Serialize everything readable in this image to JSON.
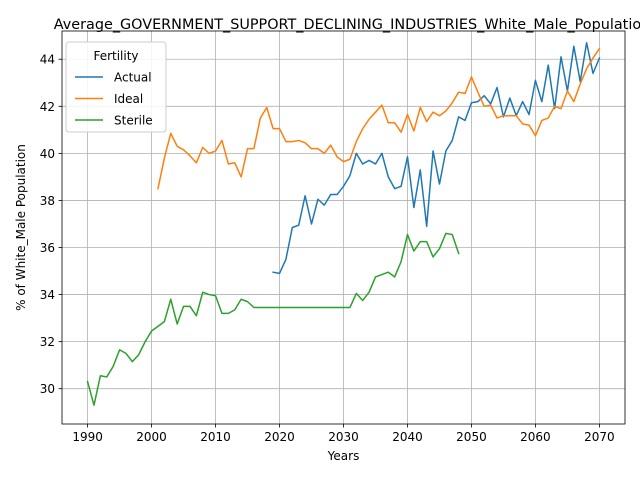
{
  "chart_data": {
    "type": "line",
    "title": "Average_GOVERNMENT_SUPPORT_DECLINING_INDUSTRIES_White_Male_Population",
    "xlabel": "Years",
    "ylabel": "% of White_Male Population",
    "xlim": [
      1986,
      2074
    ],
    "ylim": [
      28.5,
      45.2
    ],
    "xticks": [
      1990,
      2000,
      2010,
      2020,
      2030,
      2040,
      2050,
      2060,
      2070
    ],
    "yticks": [
      30,
      32,
      34,
      36,
      38,
      40,
      42,
      44
    ],
    "grid": true,
    "legend": {
      "title": "Fertility",
      "position": "upper-left"
    },
    "series": [
      {
        "name": "Actual",
        "color": "#1f77b4",
        "x": [
          2019,
          2020,
          2021,
          2022,
          2023,
          2024,
          2025,
          2026,
          2027,
          2028,
          2029,
          2030,
          2031,
          2032,
          2033,
          2034,
          2035,
          2036,
          2037,
          2038,
          2039,
          2040,
          2041,
          2042,
          2043,
          2044,
          2045,
          2046,
          2047,
          2048,
          2049,
          2050,
          2051,
          2052,
          2053,
          2054,
          2055,
          2056,
          2057,
          2058,
          2059,
          2060,
          2061,
          2062,
          2063,
          2064,
          2065,
          2066,
          2067,
          2068,
          2069,
          2070
        ],
        "y": [
          34.95,
          34.9,
          35.5,
          36.85,
          36.95,
          38.2,
          37.0,
          38.05,
          37.8,
          38.25,
          38.25,
          38.6,
          39.05,
          40.0,
          39.55,
          39.7,
          39.55,
          40.0,
          39.0,
          38.5,
          38.6,
          39.85,
          37.7,
          39.3,
          36.9,
          40.1,
          38.7,
          40.1,
          40.55,
          41.55,
          41.4,
          42.15,
          42.2,
          42.45,
          42.1,
          42.8,
          41.55,
          42.35,
          41.6,
          42.2,
          41.65,
          43.1,
          42.2,
          43.75,
          41.9,
          44.1,
          42.65,
          44.55,
          43.05,
          44.7,
          43.4,
          44.05
        ]
      },
      {
        "name": "Ideal",
        "color": "#ff7f0e",
        "x": [
          2001,
          2002,
          2003,
          2004,
          2005,
          2006,
          2007,
          2008,
          2009,
          2010,
          2011,
          2012,
          2013,
          2014,
          2015,
          2016,
          2017,
          2018,
          2019,
          2020,
          2021,
          2022,
          2023,
          2024,
          2025,
          2026,
          2027,
          2028,
          2029,
          2030,
          2031,
          2032,
          2033,
          2034,
          2035,
          2036,
          2037,
          2038,
          2039,
          2040,
          2041,
          2042,
          2043,
          2044,
          2045,
          2046,
          2047,
          2048,
          2049,
          2050,
          2051,
          2052,
          2053,
          2054,
          2055,
          2056,
          2057,
          2058,
          2059,
          2060,
          2061,
          2062,
          2063,
          2064,
          2065,
          2066,
          2067,
          2068,
          2069,
          2070
        ],
        "y": [
          38.5,
          39.8,
          40.85,
          40.3,
          40.15,
          39.9,
          39.6,
          40.25,
          40.0,
          40.1,
          40.55,
          39.55,
          39.6,
          39.0,
          40.2,
          40.2,
          41.5,
          41.95,
          41.05,
          41.05,
          40.5,
          40.5,
          40.55,
          40.45,
          40.2,
          40.2,
          40.0,
          40.35,
          39.85,
          39.65,
          39.75,
          40.5,
          41.05,
          41.45,
          41.75,
          42.05,
          41.3,
          41.3,
          40.9,
          41.65,
          40.95,
          41.95,
          41.35,
          41.75,
          41.6,
          41.8,
          42.15,
          42.6,
          42.55,
          43.25,
          42.6,
          42.0,
          42.05,
          41.5,
          41.6,
          41.6,
          41.6,
          41.25,
          41.2,
          40.75,
          41.4,
          41.5,
          42.0,
          41.9,
          42.65,
          42.2,
          42.95,
          43.6,
          44.05,
          44.45
        ]
      },
      {
        "name": "Sterile",
        "color": "#2ca02c",
        "x": [
          1990,
          1991,
          1992,
          1993,
          1994,
          1995,
          1996,
          1997,
          1998,
          1999,
          2000,
          2001,
          2002,
          2003,
          2004,
          2005,
          2006,
          2007,
          2008,
          2009,
          2010,
          2011,
          2012,
          2013,
          2014,
          2015,
          2016,
          2017,
          2018,
          2019,
          2020,
          2021,
          2022,
          2023,
          2024,
          2025,
          2026,
          2027,
          2028,
          2029,
          2030,
          2031,
          2032,
          2033,
          2034,
          2035,
          2036,
          2037,
          2038,
          2039,
          2040,
          2041,
          2042,
          2043,
          2044,
          2045,
          2046,
          2047,
          2048
        ],
        "y": [
          30.3,
          29.3,
          30.55,
          30.5,
          30.95,
          31.65,
          31.5,
          31.15,
          31.45,
          32.0,
          32.45,
          32.65,
          32.85,
          33.8,
          32.75,
          33.5,
          33.5,
          33.1,
          34.1,
          34.0,
          33.95,
          33.2,
          33.2,
          33.35,
          33.8,
          33.7,
          33.45,
          33.45,
          33.45,
          33.45,
          33.45,
          33.45,
          33.45,
          33.45,
          33.45,
          33.45,
          33.45,
          33.45,
          33.45,
          33.45,
          33.45,
          33.45,
          34.05,
          33.75,
          34.1,
          34.75,
          34.85,
          34.95,
          34.75,
          35.4,
          36.55,
          35.85,
          36.25,
          36.25,
          35.6,
          35.95,
          36.6,
          36.55,
          35.75
        ]
      }
    ]
  }
}
